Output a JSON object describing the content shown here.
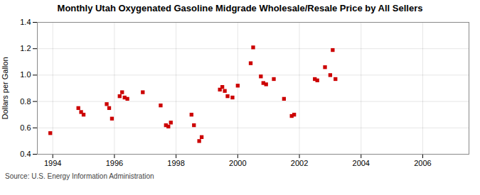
{
  "chart_data": {
    "type": "scatter",
    "title": "Monthly Utah Oxygenated Gasoline Midgrade Wholesale/Resale Price by All Sellers",
    "ylabel": "Dollars per Gallon",
    "source": "Source: U.S. Energy Information Administration",
    "color": "#cc0000",
    "marker": "square",
    "grid": true,
    "xlim": [
      1993.5,
      2007.5
    ],
    "ylim": [
      0.4,
      1.4
    ],
    "xticks": [
      1994,
      1996,
      1998,
      2000,
      2002,
      2004,
      2006
    ],
    "yticks": [
      0.4,
      0.6,
      0.8,
      {
        "value": 1.0,
        "label": "1.0"
      },
      1.2,
      1.4
    ],
    "x": [
      1993.92,
      1994.83,
      1994.92,
      1995.0,
      1995.75,
      1995.83,
      1995.92,
      1996.17,
      1996.25,
      1996.33,
      1996.42,
      1996.92,
      1997.5,
      1997.67,
      1997.75,
      1997.83,
      1998.5,
      1998.58,
      1998.75,
      1998.83,
      1999.42,
      1999.5,
      1999.58,
      1999.67,
      1999.83,
      2000.0,
      2000.42,
      2000.5,
      2000.75,
      2000.83,
      2000.92,
      2001.17,
      2001.5,
      2001.75,
      2001.83,
      2002.5,
      2002.58,
      2002.83,
      2003.0,
      2003.08,
      2003.17
    ],
    "values": [
      0.56,
      0.75,
      0.72,
      0.7,
      0.78,
      0.75,
      0.67,
      0.84,
      0.87,
      0.83,
      0.82,
      0.87,
      0.77,
      0.62,
      0.61,
      0.64,
      0.7,
      0.62,
      0.5,
      0.53,
      0.89,
      0.91,
      0.88,
      0.84,
      0.83,
      0.92,
      1.09,
      1.21,
      0.99,
      0.94,
      0.93,
      0.97,
      0.82,
      0.69,
      0.7,
      0.97,
      0.96,
      1.06,
      1.0,
      1.19,
      0.97
    ]
  }
}
